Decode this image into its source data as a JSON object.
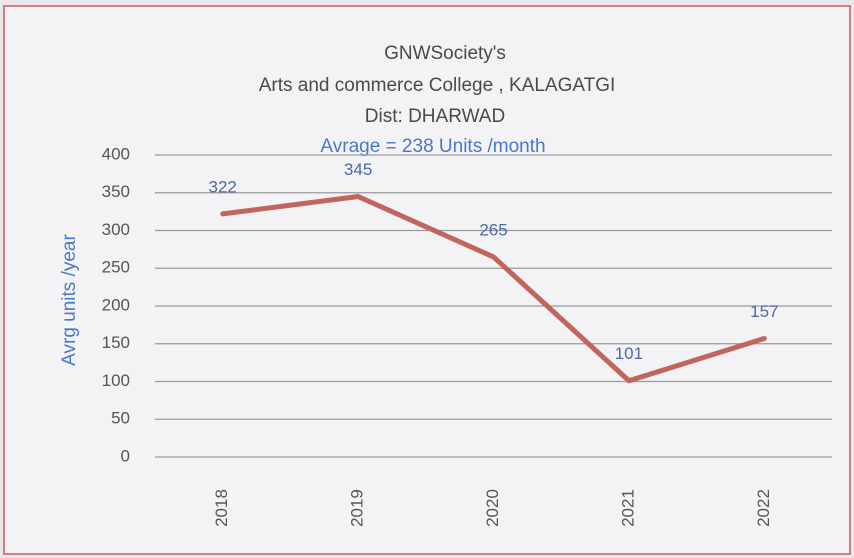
{
  "chart_data": {
    "type": "line",
    "title": [
      "GNWSociety's",
      "Arts and commerce College , KALAGATGI",
      "Dist: DHARWAD"
    ],
    "subtitle": "Avrage = 238 Units /month",
    "y_label": "Avrg units /year",
    "categories": [
      "2018",
      "2019",
      "2020",
      "2021",
      "2022"
    ],
    "series": [
      {
        "name": "Avrg units /year",
        "color": "#c2655c",
        "values": [
          322,
          345,
          265,
          101,
          157
        ]
      }
    ],
    "ylim": [
      0,
      400
    ],
    "yticks": [
      0,
      50,
      100,
      150,
      200,
      250,
      300,
      350,
      400
    ],
    "grid": true
  }
}
